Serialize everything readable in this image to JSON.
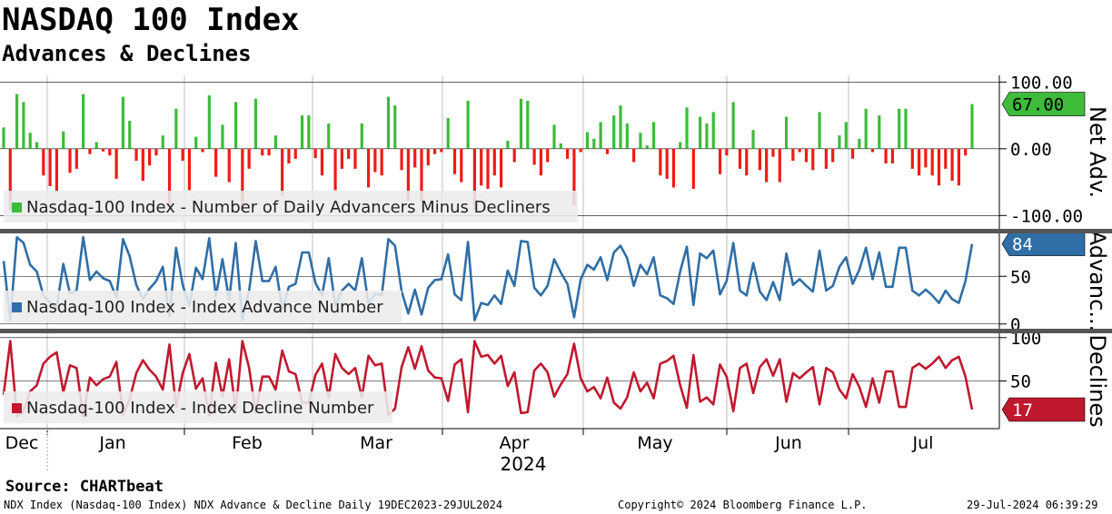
{
  "header": {
    "title": "NASDAQ 100 Index",
    "subtitle": "Advances & Declines"
  },
  "footer": {
    "source": "Source: CHARTbeat",
    "description": "NDX Index (Nasdaq-100 Index) NDX Advance & Decline  Daily 19DEC2023-29JUL2024",
    "copyright": "Copyright© 2024 Bloomberg Finance L.P.",
    "timestamp": "29-Jul-2024 06:39:29"
  },
  "x_axis": {
    "months": [
      "Dec",
      "Jan",
      "Feb",
      "Mar",
      "Apr",
      "May",
      "Jun",
      "Jul"
    ],
    "year_label": "2024"
  },
  "colors": {
    "advancers_minus_decliners": "#3dbb3a",
    "negative_bars": "#ee1c14",
    "advance_number": "#2f6ea6",
    "decline_number": "#c0192e",
    "panel_separator": "#555555",
    "grid": "#888888"
  },
  "chart_data": [
    {
      "type": "bar",
      "panel": "Net Adv.",
      "ylabel": "Net Adv.",
      "yticks": [
        "100.00",
        "0.00",
        "-100.00"
      ],
      "ylim": [
        -120,
        110
      ],
      "legend": "Nasdaq-100 Index - Number of Daily Advancers Minus Decliners",
      "last_value_label": "67.00",
      "series": [
        {
          "name": "Nasdaq-100 Index - Number of Daily Advancers Minus Decliners",
          "values": [
            32,
            -92,
            82,
            70,
            24,
            10,
            -40,
            -56,
            -65,
            26,
            -36,
            -30,
            82,
            -8,
            10,
            -4,
            -10,
            -45,
            78,
            42,
            -18,
            -48,
            -25,
            -10,
            20,
            -85,
            60,
            -18,
            -62,
            18,
            -5,
            80,
            -42,
            36,
            -50,
            70,
            -92,
            -30,
            75,
            -10,
            -10,
            20,
            -70,
            -22,
            -15,
            50,
            50,
            -14,
            -40,
            38,
            -62,
            -30,
            -15,
            -30,
            38,
            -58,
            -35,
            -40,
            78,
            65,
            -32,
            -78,
            -28,
            -80,
            -25,
            -8,
            -5,
            46,
            -38,
            -50,
            72,
            -92,
            -55,
            -60,
            -40,
            -58,
            12,
            -20,
            75,
            72,
            -24,
            -40,
            -20,
            36,
            8,
            -15,
            -85,
            -5,
            25,
            15,
            40,
            -8,
            50,
            65,
            38,
            -20,
            24,
            5,
            40,
            -40,
            -45,
            -58,
            10,
            62,
            -60,
            48,
            38,
            55,
            -38,
            -10,
            70,
            -30,
            -40,
            28,
            -32,
            -50,
            -12,
            -50,
            48,
            -18,
            -5,
            -20,
            -32,
            55,
            -30,
            -20,
            20,
            40,
            -15,
            15,
            60,
            -5,
            50,
            -22,
            -22,
            60,
            60,
            -30,
            -40,
            -28,
            -40,
            -55,
            -30,
            -48,
            -55,
            -10,
            67
          ]
        }
      ]
    },
    {
      "type": "line",
      "panel": "Advanc...",
      "ylabel": "Advanc...",
      "yticks": [
        "50",
        "0"
      ],
      "ylim": [
        -5,
        95
      ],
      "legend": "Nasdaq-100 Index - Index Advance Number",
      "last_value_label": "84",
      "series": [
        {
          "name": "Nasdaq-100 Index - Index Advance Number",
          "values": [
            66,
            4,
            91,
            85,
            62,
            55,
            30,
            22,
            17,
            63,
            32,
            35,
            91,
            46,
            55,
            48,
            45,
            28,
            89,
            71,
            41,
            26,
            37,
            45,
            60,
            8,
            80,
            41,
            19,
            59,
            47,
            90,
            29,
            68,
            25,
            85,
            4,
            35,
            87,
            45,
            45,
            60,
            15,
            39,
            42,
            75,
            75,
            43,
            30,
            69,
            19,
            35,
            42,
            35,
            69,
            21,
            32,
            30,
            89,
            82,
            34,
            11,
            36,
            10,
            38,
            46,
            47,
            73,
            31,
            25,
            86,
            4,
            22,
            20,
            30,
            21,
            56,
            40,
            87,
            86,
            38,
            30,
            40,
            68,
            54,
            42,
            7,
            47,
            62,
            57,
            70,
            46,
            75,
            82,
            69,
            40,
            62,
            52,
            70,
            30,
            27,
            21,
            55,
            81,
            20,
            74,
            69,
            77,
            31,
            45,
            85,
            35,
            30,
            64,
            34,
            25,
            44,
            25,
            74,
            41,
            47,
            40,
            34,
            77,
            35,
            40,
            60,
            70,
            42,
            57,
            80,
            47,
            75,
            39,
            39,
            80,
            80,
            35,
            30,
            36,
            30,
            22,
            35,
            26,
            22,
            45,
            84
          ]
        }
      ]
    },
    {
      "type": "line",
      "panel": "Declines",
      "ylabel": "Declines",
      "yticks": [
        "100",
        "50"
      ],
      "ylim": [
        -5,
        105
      ],
      "legend": "Nasdaq-100 Index - Index Decline Number",
      "last_value_label": "17",
      "series": [
        {
          "name": "Nasdaq-100 Index - Index Decline Number",
          "values": [
            34,
            96,
            9,
            15,
            38,
            45,
            70,
            78,
            83,
            37,
            68,
            65,
            9,
            54,
            45,
            52,
            55,
            72,
            11,
            29,
            59,
            74,
            63,
            55,
            40,
            92,
            20,
            59,
            81,
            41,
            53,
            10,
            71,
            32,
            75,
            15,
            96,
            65,
            13,
            55,
            55,
            40,
            85,
            61,
            58,
            25,
            25,
            57,
            70,
            31,
            81,
            65,
            58,
            65,
            31,
            79,
            68,
            70,
            11,
            18,
            66,
            89,
            64,
            90,
            62,
            54,
            53,
            27,
            69,
            75,
            14,
            96,
            78,
            80,
            70,
            79,
            44,
            60,
            13,
            14,
            62,
            70,
            60,
            32,
            46,
            58,
            93,
            53,
            38,
            43,
            30,
            54,
            25,
            18,
            31,
            60,
            38,
            48,
            30,
            70,
            73,
            79,
            45,
            19,
            80,
            26,
            31,
            23,
            69,
            55,
            15,
            65,
            70,
            36,
            66,
            75,
            56,
            75,
            26,
            59,
            53,
            60,
            66,
            23,
            65,
            60,
            40,
            30,
            58,
            43,
            20,
            53,
            25,
            61,
            61,
            20,
            20,
            65,
            70,
            64,
            70,
            78,
            65,
            74,
            78,
            55,
            17
          ]
        }
      ]
    }
  ]
}
